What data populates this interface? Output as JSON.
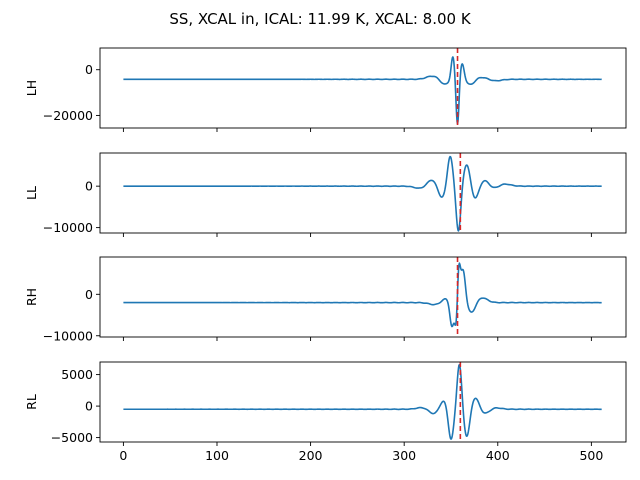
{
  "chart_data": {
    "type": "line",
    "title": "SS, XCAL in, ICAL: 11.99 K, XCAL: 8.00 K",
    "xlim": [
      -25,
      537
    ],
    "x_ticks": [
      0,
      100,
      200,
      300,
      400,
      500
    ],
    "line_color": "#1f77b4",
    "marker_color": "#d62728",
    "panels": [
      {
        "ylabel": "LH",
        "ylim": [
          -25500,
          9500
        ],
        "y_ticks": [
          {
            "value": 0,
            "label": "0"
          },
          {
            "value": -20000,
            "label": "−20000"
          }
        ],
        "baseline": -4200,
        "center": 357,
        "vline_x": 357,
        "peaks": [
          [
            357,
            -20000,
            2.2
          ],
          [
            352,
            10000,
            2.6
          ],
          [
            362,
            7000,
            3
          ],
          [
            343,
            -2300,
            6
          ],
          [
            371,
            -2400,
            6
          ],
          [
            330,
            1400,
            9
          ],
          [
            383,
            900,
            9
          ],
          [
            397,
            -700,
            9
          ]
        ]
      },
      {
        "ylabel": "LL",
        "ylim": [
          -11300,
          8000
        ],
        "y_ticks": [
          {
            "value": 0,
            "label": "0"
          },
          {
            "value": -10000,
            "label": "−10000"
          }
        ],
        "baseline": 0,
        "center": 360,
        "vline_x": 360,
        "peaks": [
          [
            358,
            -11000,
            3.5
          ],
          [
            349,
            7500,
            4
          ],
          [
            367,
            5500,
            5
          ],
          [
            340,
            -3000,
            6
          ],
          [
            376,
            -3500,
            6
          ],
          [
            330,
            1700,
            8
          ],
          [
            385,
            1800,
            8
          ],
          [
            396,
            -900,
            9
          ],
          [
            318,
            -600,
            9
          ],
          [
            405,
            700,
            10
          ]
        ]
      },
      {
        "ylabel": "RH",
        "ylim": [
          -10300,
          9000
        ],
        "y_ticks": [
          {
            "value": 0,
            "label": "0"
          },
          {
            "value": -10000,
            "label": "−10000"
          }
        ],
        "baseline": -2000,
        "center": 357,
        "vline_x": 357,
        "peaks": [
          [
            356,
            -8000,
            2.3
          ],
          [
            358,
            10500,
            2.4
          ],
          [
            351,
            -6000,
            3
          ],
          [
            363,
            8000,
            3.5
          ],
          [
            344,
            1000,
            6
          ],
          [
            372,
            -2500,
            6
          ],
          [
            383,
            1200,
            8
          ],
          [
            333,
            -500,
            9
          ]
        ]
      },
      {
        "ylabel": "RL",
        "ylim": [
          -5700,
          7000
        ],
        "y_ticks": [
          {
            "value": 5000,
            "label": "5000"
          },
          {
            "value": 0,
            "label": "0"
          },
          {
            "value": -5000,
            "label": "−5000"
          }
        ],
        "baseline": -500,
        "center": 360,
        "vline_x": 360,
        "peaks": [
          [
            359,
            7300,
            3.5
          ],
          [
            350,
            -5000,
            4
          ],
          [
            367,
            -4500,
            4.5
          ],
          [
            342,
            1500,
            6
          ],
          [
            376,
            2000,
            6
          ],
          [
            332,
            -800,
            8
          ],
          [
            386,
            -800,
            8
          ],
          [
            320,
            300,
            9
          ],
          [
            396,
            300,
            9
          ]
        ]
      }
    ]
  }
}
